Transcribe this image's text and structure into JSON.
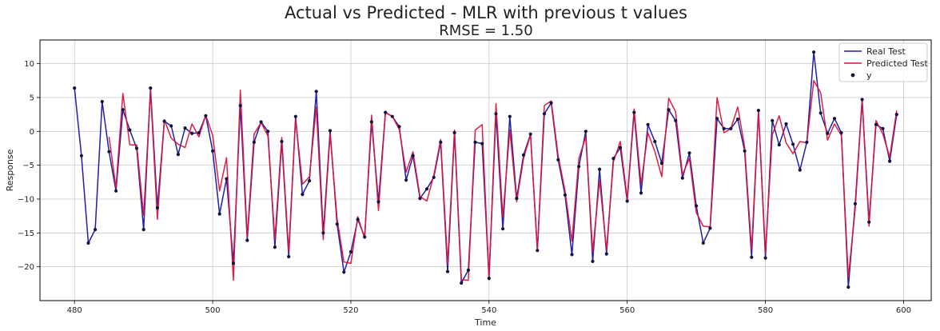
{
  "chart_data": {
    "type": "line",
    "title": "Actual vs Predicted - MLR with previous t values",
    "subtitle": "RMSE = 1.50",
    "xlabel": "Time",
    "ylabel": "Response",
    "xlim": [
      475,
      604
    ],
    "ylim": [
      -25,
      13.5
    ],
    "xticks": [
      480,
      500,
      520,
      540,
      560,
      580,
      600
    ],
    "yticks": [
      -20,
      -15,
      -10,
      -5,
      0,
      5,
      10
    ],
    "ytick_labels": [
      "−20",
      "−15",
      "−10",
      "−5",
      "0",
      "5",
      "10"
    ],
    "grid": true,
    "legend_position": "top-right",
    "colors": {
      "real": "#1f1fa8",
      "predicted": "#dc143c",
      "points": "#14143c"
    },
    "x": [
      480,
      481,
      482,
      483,
      484,
      485,
      486,
      487,
      488,
      489,
      490,
      491,
      492,
      493,
      494,
      495,
      496,
      497,
      498,
      499,
      500,
      501,
      502,
      503,
      504,
      505,
      506,
      507,
      508,
      509,
      510,
      511,
      512,
      513,
      514,
      515,
      516,
      517,
      518,
      519,
      520,
      521,
      522,
      523,
      524,
      525,
      526,
      527,
      528,
      529,
      530,
      531,
      532,
      533,
      534,
      535,
      536,
      537,
      538,
      539,
      540,
      541,
      542,
      543,
      544,
      545,
      546,
      547,
      548,
      549,
      550,
      551,
      552,
      553,
      554,
      555,
      556,
      557,
      558,
      559,
      560,
      561,
      562,
      563,
      564,
      565,
      566,
      567,
      568,
      569,
      570,
      571,
      572,
      573,
      574,
      575,
      576,
      577,
      578,
      579,
      580,
      581,
      582,
      583,
      584,
      585,
      586,
      587,
      588,
      589,
      590,
      591,
      592,
      593,
      594,
      595,
      596,
      597,
      598,
      599
    ],
    "series": [
      {
        "name": "Real Test",
        "values": [
          6.4,
          -3.6,
          -16.5,
          -14.5,
          4.4,
          -3.0,
          -8.8,
          3.2,
          0.2,
          -2.5,
          -14.5,
          6.4,
          -11.3,
          1.5,
          0.8,
          -3.4,
          0.5,
          -0.3,
          -0.2,
          2.3,
          -2.9,
          -12.2,
          -7.0,
          -19.5,
          3.8,
          -16.1,
          -1.6,
          1.4,
          0.0,
          -17.1,
          -1.5,
          -18.5,
          2.2,
          -9.3,
          -7.3,
          5.9,
          -15.0,
          0.1,
          -13.7,
          -20.8,
          -17.8,
          -13.0,
          -15.6,
          1.4,
          -10.4,
          2.8,
          2.2,
          0.7,
          -7.2,
          -3.6,
          -9.9,
          -8.5,
          -6.8,
          -1.6,
          -20.7,
          -0.2,
          -22.4,
          -20.5,
          -1.6,
          -1.8,
          -21.7,
          2.6,
          -14.4,
          2.2,
          -9.9,
          -3.5,
          -0.4,
          -17.6,
          2.6,
          4.2,
          -4.2,
          -9.4,
          -18.2,
          -5.2,
          0.0,
          -19.2,
          -5.6,
          -18.1,
          -4.0,
          -2.4,
          -10.3,
          2.8,
          -9.1,
          1.0,
          -1.5,
          -4.7,
          3.2,
          1.6,
          -6.9,
          -3.2,
          -11.0,
          -16.5,
          -14.3,
          1.9,
          0.4,
          0.4,
          1.8,
          -2.9,
          -18.6,
          3.1,
          -18.7,
          1.6,
          -2.0,
          1.1,
          -1.9,
          -5.7,
          -1.6,
          11.7,
          2.7,
          -0.3,
          1.9,
          -0.2,
          -23.0,
          -10.7,
          4.7,
          -13.4,
          1.0,
          0.4,
          -4.4,
          2.5
        ]
      },
      {
        "name": "Predicted Test",
        "values": [
          null,
          null,
          null,
          null,
          null,
          -0.8,
          -8.3,
          5.6,
          -2.0,
          -2.0,
          -12.4,
          6.0,
          -13.0,
          1.7,
          -1.0,
          -1.9,
          -2.4,
          1.1,
          -0.8,
          2.4,
          -0.6,
          -8.8,
          -3.9,
          -22.0,
          6.1,
          -15.6,
          -0.4,
          1.3,
          -0.7,
          -16.0,
          -0.9,
          -17.8,
          1.8,
          -7.8,
          -6.7,
          3.6,
          -16.0,
          -0.4,
          -12.9,
          -19.3,
          -19.5,
          -12.6,
          -15.8,
          2.4,
          -11.7,
          2.8,
          2.2,
          0.3,
          -6.0,
          -3.0,
          -9.6,
          -10.3,
          -6.5,
          -1.2,
          -19.6,
          0.2,
          -21.9,
          -22.0,
          0.2,
          1.0,
          -21.9,
          4.1,
          -12.7,
          0.2,
          -10.4,
          -4.0,
          -0.5,
          -17.6,
          3.8,
          4.5,
          -3.6,
          -8.8,
          -16.2,
          -4.0,
          -0.8,
          -17.8,
          -7.2,
          -17.5,
          -4.5,
          -1.5,
          -10.0,
          3.3,
          -7.8,
          -0.2,
          -3.0,
          -6.7,
          4.9,
          2.9,
          -6.4,
          -4.0,
          -12.0,
          -14.0,
          -14.1,
          5.0,
          -0.2,
          0.4,
          3.6,
          -2.3,
          -17.5,
          3.0,
          -18.0,
          -0.5,
          2.3,
          -1.7,
          -3.3,
          -1.5,
          -1.7,
          7.5,
          5.7,
          -1.3,
          1.1,
          -0.6,
          -21.6,
          -11.5,
          4.7,
          -14.0,
          1.6,
          -0.4,
          -3.8,
          3.1
        ]
      },
      {
        "name": "y",
        "values": [
          6.4,
          -3.6,
          -16.5,
          -14.5,
          4.4,
          -3.0,
          -8.8,
          3.2,
          0.2,
          -2.5,
          -14.5,
          6.4,
          -11.3,
          1.5,
          0.8,
          -3.4,
          0.5,
          -0.3,
          -0.2,
          2.3,
          -2.9,
          -12.2,
          -7.0,
          -19.5,
          3.8,
          -16.1,
          -1.6,
          1.4,
          0.0,
          -17.1,
          -1.5,
          -18.5,
          2.2,
          -9.3,
          -7.3,
          5.9,
          -15.0,
          0.1,
          -13.7,
          -20.8,
          -17.8,
          -13.0,
          -15.6,
          1.4,
          -10.4,
          2.8,
          2.2,
          0.7,
          -7.2,
          -3.6,
          -9.9,
          -8.5,
          -6.8,
          -1.6,
          -20.7,
          -0.2,
          -22.4,
          -20.5,
          -1.6,
          -1.8,
          -21.7,
          2.6,
          -14.4,
          2.2,
          -9.9,
          -3.5,
          -0.4,
          -17.6,
          2.6,
          4.2,
          -4.2,
          -9.4,
          -18.2,
          -5.2,
          0.0,
          -19.2,
          -5.6,
          -18.1,
          -4.0,
          -2.4,
          -10.3,
          2.8,
          -9.1,
          1.0,
          -1.5,
          -4.7,
          3.2,
          1.6,
          -6.9,
          -3.2,
          -11.0,
          -16.5,
          -14.3,
          1.9,
          0.4,
          0.4,
          1.8,
          -2.9,
          -18.6,
          3.1,
          -18.7,
          1.6,
          -2.0,
          1.1,
          -1.9,
          -5.7,
          -1.6,
          11.7,
          2.7,
          -0.3,
          1.9,
          -0.2,
          -23.0,
          -10.7,
          4.7,
          -13.4,
          1.0,
          0.4,
          -4.4,
          2.5
        ]
      }
    ]
  }
}
